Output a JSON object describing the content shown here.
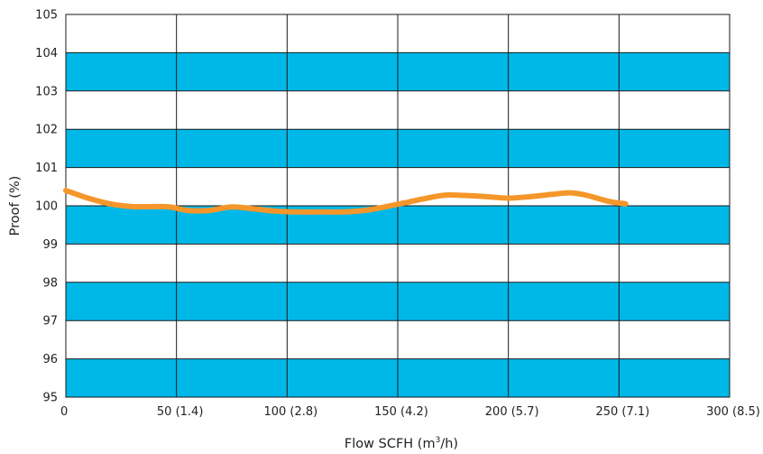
{
  "chart_data": {
    "type": "line",
    "xlabel_main": "Flow SCFH (m",
    "xlabel_sup": "3",
    "xlabel_tail": "/h)",
    "ylabel": "Proof (%)",
    "xlim": [
      0,
      300
    ],
    "ylim": [
      95,
      105
    ],
    "x_ticks": [
      {
        "value": 0,
        "label": "0"
      },
      {
        "value": 50,
        "label": "50 (1.4)"
      },
      {
        "value": 100,
        "label": "100 (2.8)"
      },
      {
        "value": 150,
        "label": "150 (4.2)"
      },
      {
        "value": 200,
        "label": "200 (5.7)"
      },
      {
        "value": 250,
        "label": "250 (7.1)"
      },
      {
        "value": 300,
        "label": "300 (8.5)"
      }
    ],
    "y_ticks": [
      {
        "value": 105,
        "label": "105"
      },
      {
        "value": 104,
        "label": "104"
      },
      {
        "value": 103,
        "label": "103"
      },
      {
        "value": 102,
        "label": "102"
      },
      {
        "value": 101,
        "label": "101"
      },
      {
        "value": 100,
        "label": "100"
      },
      {
        "value": 99,
        "label": "99"
      },
      {
        "value": 98,
        "label": "98"
      },
      {
        "value": 97,
        "label": "97"
      },
      {
        "value": 96,
        "label": "96"
      },
      {
        "value": 95,
        "label": "95"
      }
    ],
    "bands": [
      [
        103,
        104
      ],
      [
        101,
        102
      ],
      [
        99,
        100
      ],
      [
        97,
        98
      ],
      [
        95,
        96
      ]
    ],
    "grid": true,
    "series": [
      {
        "x": [
          0,
          10,
          20,
          30,
          40,
          47,
          55,
          65,
          75,
          85,
          95,
          105,
          115,
          125,
          135,
          145,
          155,
          165,
          172,
          180,
          190,
          200,
          210,
          220,
          228,
          235,
          245,
          253
        ],
        "y": [
          100.4,
          100.2,
          100.05,
          99.98,
          99.98,
          99.97,
          99.88,
          99.88,
          99.97,
          99.92,
          99.86,
          99.84,
          99.84,
          99.84,
          99.88,
          99.98,
          100.1,
          100.22,
          100.28,
          100.27,
          100.24,
          100.2,
          100.24,
          100.3,
          100.34,
          100.28,
          100.12,
          100.05
        ]
      }
    ]
  },
  "colors": {
    "band": "#00b8e8",
    "line": "#f5962a",
    "grid": "#1a1a1a"
  }
}
